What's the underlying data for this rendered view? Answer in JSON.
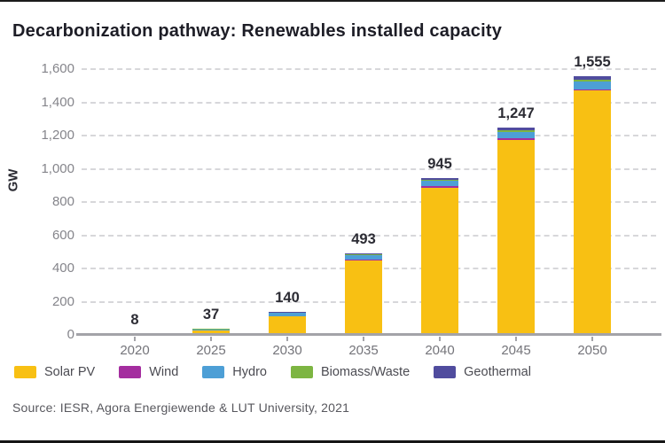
{
  "page": {
    "title": "Decarbonization pathway: Renewables installed capacity",
    "source": "Source: IESR, Agora Energiewende & LUT University, 2021"
  },
  "chart_data": {
    "type": "bar",
    "stacked": true,
    "title": "Decarbonization pathway: Renewables installed capacity",
    "categories": [
      "2020",
      "2025",
      "2030",
      "2035",
      "2040",
      "2045",
      "2050"
    ],
    "series": [
      {
        "name": "Solar PV",
        "color": "#F8C013",
        "values": [
          0.5,
          27,
          112,
          448,
          888,
          1176,
          1470
        ]
      },
      {
        "name": "Wind",
        "color": "#A42D9F",
        "values": [
          0.5,
          1,
          2,
          4,
          6,
          7,
          8
        ]
      },
      {
        "name": "Hydro",
        "color": "#4D9FD6",
        "values": [
          3,
          6,
          18,
          26,
          32,
          38,
          45
        ]
      },
      {
        "name": "Biomass/Waste",
        "color": "#7DB542",
        "values": [
          1,
          1,
          4,
          7,
          8,
          10,
          12
        ]
      },
      {
        "name": "Geothermal",
        "color": "#504C9E",
        "values": [
          3,
          2,
          4,
          8,
          11,
          16,
          20
        ]
      }
    ],
    "totals": [
      8,
      37,
      140,
      493,
      945,
      1247,
      1555
    ],
    "total_labels": [
      "8",
      "37",
      "140",
      "493",
      "945",
      "1,247",
      "1,555"
    ],
    "xlabel": "",
    "ylabel": "GW",
    "ylim": [
      0,
      1600
    ],
    "ytick_step": 200,
    "ytick_labels": [
      "0",
      "200",
      "400",
      "600",
      "800",
      "1,000",
      "1,200",
      "1,400",
      "1,600"
    ],
    "grid": "horizontal-dashed",
    "legend_position": "bottom-left"
  }
}
